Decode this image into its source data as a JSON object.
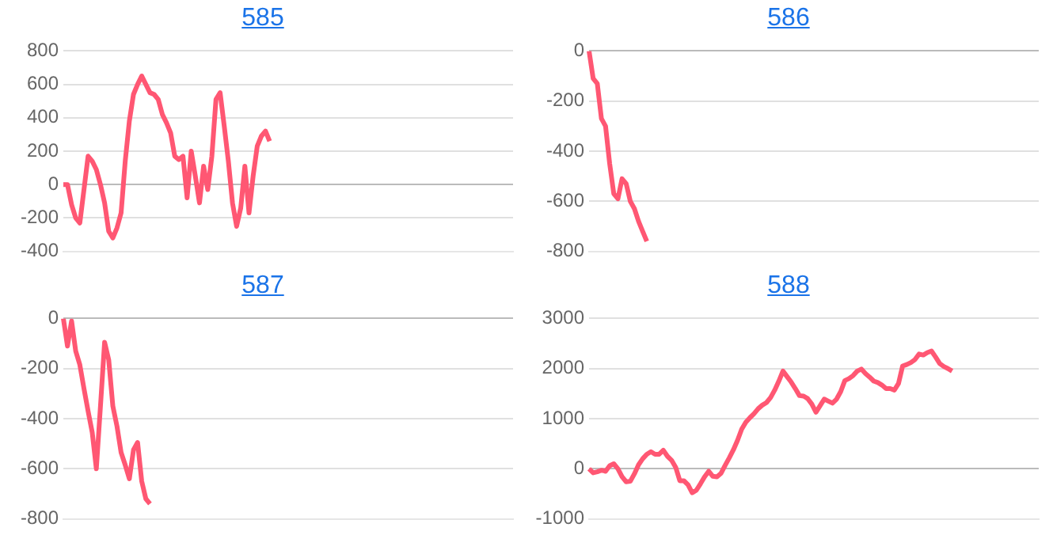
{
  "chart_data": [
    {
      "type": "line",
      "title": "585",
      "categories": [
        null,
        null,
        null,
        null,
        null,
        null,
        null,
        null,
        null,
        null,
        null,
        null,
        null,
        null,
        null,
        null,
        null,
        null,
        null,
        null,
        null,
        null,
        null,
        null,
        null,
        null,
        null,
        null,
        null,
        null,
        null,
        null,
        null,
        null,
        null,
        null,
        null,
        null,
        null,
        null,
        null,
        null,
        null,
        null,
        null,
        null,
        null,
        null,
        null,
        null,
        null,
        null,
        null,
        null,
        null,
        null,
        null,
        null,
        null,
        null,
        null,
        null,
        null,
        null,
        null,
        null,
        null,
        null,
        null,
        null,
        null,
        null,
        null,
        null,
        null,
        null,
        null,
        null,
        null,
        null,
        null,
        null,
        null,
        null,
        null,
        null,
        null,
        null,
        null,
        null,
        null,
        null,
        null,
        null,
        null,
        null,
        null,
        null,
        null,
        null,
        null,
        null,
        null,
        null,
        null,
        null,
        null,
        null,
        null,
        null
      ],
      "series": [
        {
          "color": "#ff5773",
          "values": [
            0,
            0,
            -120,
            -200,
            -230,
            -30,
            170,
            140,
            90,
            0,
            -110,
            -280,
            -320,
            -260,
            -170,
            140,
            380,
            540,
            600,
            650,
            600,
            550,
            540,
            510,
            420,
            370,
            310,
            170,
            150,
            170,
            -80,
            200,
            50,
            -110,
            110,
            -30,
            170,
            510,
            550,
            350,
            140,
            -110,
            -250,
            -140,
            110,
            -170,
            50,
            230,
            290,
            320,
            260,
            null,
            null,
            null,
            null,
            null,
            null,
            null,
            null,
            null,
            null,
            null,
            null,
            null,
            null,
            null,
            null,
            null,
            null,
            null,
            null,
            null,
            null,
            null,
            null,
            null,
            null,
            null,
            null,
            null,
            null,
            null,
            null,
            null,
            null,
            null,
            null,
            null,
            null,
            null,
            null,
            null,
            null,
            null,
            null,
            null,
            null,
            null,
            null,
            null,
            null,
            null,
            null,
            null,
            null,
            null,
            null,
            null,
            null,
            null
          ]
        }
      ],
      "ylim": [
        -400,
        800
      ],
      "yticks": [
        -400,
        -200,
        0,
        200,
        400,
        600,
        800
      ],
      "grid": "y",
      "tick_labels": "y",
      "marker": "none"
    },
    {
      "type": "line",
      "title": "586",
      "categories": [
        null,
        null,
        null,
        null,
        null,
        null,
        null,
        null,
        null,
        null,
        null,
        null,
        null,
        null,
        null,
        null,
        null,
        null,
        null,
        null,
        null,
        null,
        null,
        null,
        null,
        null,
        null,
        null,
        null,
        null,
        null,
        null,
        null,
        null,
        null,
        null,
        null,
        null,
        null,
        null,
        null,
        null,
        null,
        null,
        null,
        null,
        null,
        null,
        null,
        null,
        null,
        null,
        null,
        null,
        null,
        null,
        null,
        null,
        null,
        null,
        null,
        null,
        null,
        null,
        null,
        null,
        null,
        null,
        null,
        null,
        null,
        null,
        null,
        null,
        null,
        null,
        null,
        null,
        null,
        null,
        null,
        null,
        null,
        null,
        null,
        null,
        null,
        null,
        null,
        null,
        null,
        null,
        null,
        null,
        null,
        null,
        null,
        null,
        null,
        null,
        null,
        null,
        null,
        null,
        null,
        null,
        null,
        null,
        null,
        null
      ],
      "series": [
        {
          "color": "#ff5773",
          "values": [
            0,
            -110,
            -130,
            -270,
            -300,
            -450,
            -570,
            -590,
            -510,
            -530,
            -600,
            -630,
            -680,
            -720,
            -760,
            null,
            null,
            null,
            null,
            null,
            null,
            null,
            null,
            null,
            null,
            null,
            null,
            null,
            null,
            null,
            null,
            null,
            null,
            null,
            null,
            null,
            null,
            null,
            null,
            null,
            null,
            null,
            null,
            null,
            null,
            null,
            null,
            null,
            null,
            null,
            null,
            null,
            null,
            null,
            null,
            null,
            null,
            null,
            null,
            null,
            null,
            null,
            null,
            null,
            null,
            null,
            null,
            null,
            null,
            null,
            null,
            null,
            null,
            null,
            null,
            null,
            null,
            null,
            null,
            null,
            null,
            null,
            null,
            null,
            null,
            null,
            null,
            null,
            null,
            null,
            null,
            null,
            null,
            null,
            null,
            null,
            null,
            null,
            null,
            null,
            null,
            null,
            null,
            null,
            null,
            null,
            null,
            null,
            null,
            null
          ]
        }
      ],
      "ylim": [
        -800,
        0
      ],
      "yticks": [
        -800,
        -600,
        -400,
        -200,
        0
      ],
      "grid": "y",
      "tick_labels": "y",
      "marker": "none"
    },
    {
      "type": "line",
      "title": "587",
      "categories": [
        null,
        null,
        null,
        null,
        null,
        null,
        null,
        null,
        null,
        null,
        null,
        null,
        null,
        null,
        null,
        null,
        null,
        null,
        null,
        null,
        null,
        null,
        null,
        null,
        null,
        null,
        null,
        null,
        null,
        null,
        null,
        null,
        null,
        null,
        null,
        null,
        null,
        null,
        null,
        null,
        null,
        null,
        null,
        null,
        null,
        null,
        null,
        null,
        null,
        null,
        null,
        null,
        null,
        null,
        null,
        null,
        null,
        null,
        null,
        null,
        null,
        null,
        null,
        null,
        null,
        null,
        null,
        null,
        null,
        null,
        null,
        null,
        null,
        null,
        null,
        null,
        null,
        null,
        null,
        null,
        null,
        null,
        null,
        null,
        null,
        null,
        null,
        null,
        null,
        null,
        null,
        null,
        null,
        null,
        null,
        null,
        null,
        null,
        null,
        null,
        null,
        null,
        null,
        null,
        null,
        null,
        null,
        null,
        null,
        null
      ],
      "series": [
        {
          "color": "#ff5773",
          "values": [
            0,
            -110,
            -10,
            -130,
            -185,
            -280,
            -370,
            -455,
            -600,
            -350,
            -95,
            -165,
            -350,
            -430,
            -535,
            -585,
            -640,
            -525,
            -495,
            -650,
            -720,
            -740,
            null,
            null,
            null,
            null,
            null,
            null,
            null,
            null,
            null,
            null,
            null,
            null,
            null,
            null,
            null,
            null,
            null,
            null,
            null,
            null,
            null,
            null,
            null,
            null,
            null,
            null,
            null,
            null,
            null,
            null,
            null,
            null,
            null,
            null,
            null,
            null,
            null,
            null,
            null,
            null,
            null,
            null,
            null,
            null,
            null,
            null,
            null,
            null,
            null,
            null,
            null,
            null,
            null,
            null,
            null,
            null,
            null,
            null,
            null,
            null,
            null,
            null,
            null,
            null,
            null,
            null,
            null,
            null,
            null,
            null,
            null,
            null,
            null,
            null,
            null,
            null,
            null,
            null,
            null,
            null,
            null,
            null,
            null,
            null,
            null,
            null,
            null,
            null
          ]
        }
      ],
      "ylim": [
        -800,
        0
      ],
      "yticks": [
        -800,
        -600,
        -400,
        -200,
        0
      ],
      "grid": "y",
      "tick_labels": "y",
      "marker": "none"
    },
    {
      "type": "line",
      "title": "588",
      "categories": [
        null,
        null,
        null,
        null,
        null,
        null,
        null,
        null,
        null,
        null,
        null,
        null,
        null,
        null,
        null,
        null,
        null,
        null,
        null,
        null,
        null,
        null,
        null,
        null,
        null,
        null,
        null,
        null,
        null,
        null,
        null,
        null,
        null,
        null,
        null,
        null,
        null,
        null,
        null,
        null,
        null,
        null,
        null,
        null,
        null,
        null,
        null,
        null,
        null,
        null,
        null,
        null,
        null,
        null,
        null,
        null,
        null,
        null,
        null,
        null,
        null,
        null,
        null,
        null,
        null,
        null,
        null,
        null,
        null,
        null,
        null,
        null,
        null,
        null,
        null,
        null,
        null,
        null,
        null,
        null,
        null,
        null,
        null,
        null,
        null,
        null,
        null,
        null,
        null,
        null,
        null,
        null,
        null,
        null,
        null,
        null,
        null,
        null,
        null,
        null,
        null,
        null,
        null,
        null,
        null,
        null,
        null,
        null,
        null,
        null
      ],
      "series": [
        {
          "color": "#ff5773",
          "values": [
            0,
            -80,
            -60,
            -30,
            -50,
            60,
            100,
            0,
            -160,
            -260,
            -250,
            -100,
            80,
            200,
            290,
            340,
            290,
            290,
            370,
            250,
            170,
            30,
            -240,
            -240,
            -320,
            -480,
            -430,
            -300,
            -160,
            -50,
            -150,
            -160,
            -90,
            70,
            220,
            380,
            570,
            790,
            930,
            1020,
            1100,
            1200,
            1270,
            1320,
            1420,
            1570,
            1750,
            1950,
            1840,
            1730,
            1600,
            1460,
            1450,
            1400,
            1290,
            1130,
            1260,
            1390,
            1350,
            1310,
            1390,
            1540,
            1760,
            1800,
            1860,
            1950,
            1990,
            1900,
            1830,
            1750,
            1720,
            1670,
            1600,
            1600,
            1570,
            1700,
            2050,
            2080,
            2120,
            2180,
            2290,
            2270,
            2320,
            2350,
            2230,
            2100,
            2040,
            2000,
            1950,
            null,
            null,
            null,
            null,
            null,
            null,
            null,
            null,
            null,
            null,
            null,
            null,
            null,
            null,
            null,
            null,
            null,
            null,
            null,
            null,
            null
          ]
        }
      ],
      "ylim": [
        -1000,
        3000
      ],
      "yticks": [
        -1000,
        0,
        1000,
        2000,
        3000
      ],
      "grid": "y",
      "tick_labels": "y",
      "marker": "none"
    }
  ]
}
